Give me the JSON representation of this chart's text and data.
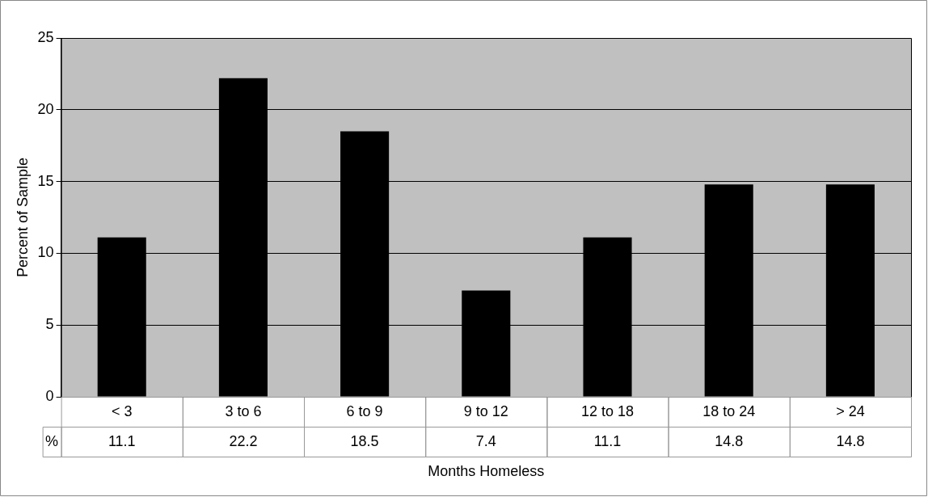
{
  "chart_data": {
    "type": "bar",
    "xlabel": "Months Homeless",
    "ylabel": "Percent of Sample",
    "categories": [
      "< 3",
      "3 to 6",
      "6 to 9",
      "9 to 12",
      "12 to 18",
      "18 to 24",
      "> 24"
    ],
    "series": [
      {
        "name": "%",
        "color": "#000000",
        "values": [
          11.1,
          22.2,
          18.5,
          7.4,
          11.1,
          14.8,
          14.8
        ]
      }
    ],
    "ylim": [
      0,
      25
    ],
    "yticks": [
      0,
      5,
      10,
      15,
      20,
      25
    ],
    "grid": "y",
    "legend": false,
    "data_labels": true
  }
}
